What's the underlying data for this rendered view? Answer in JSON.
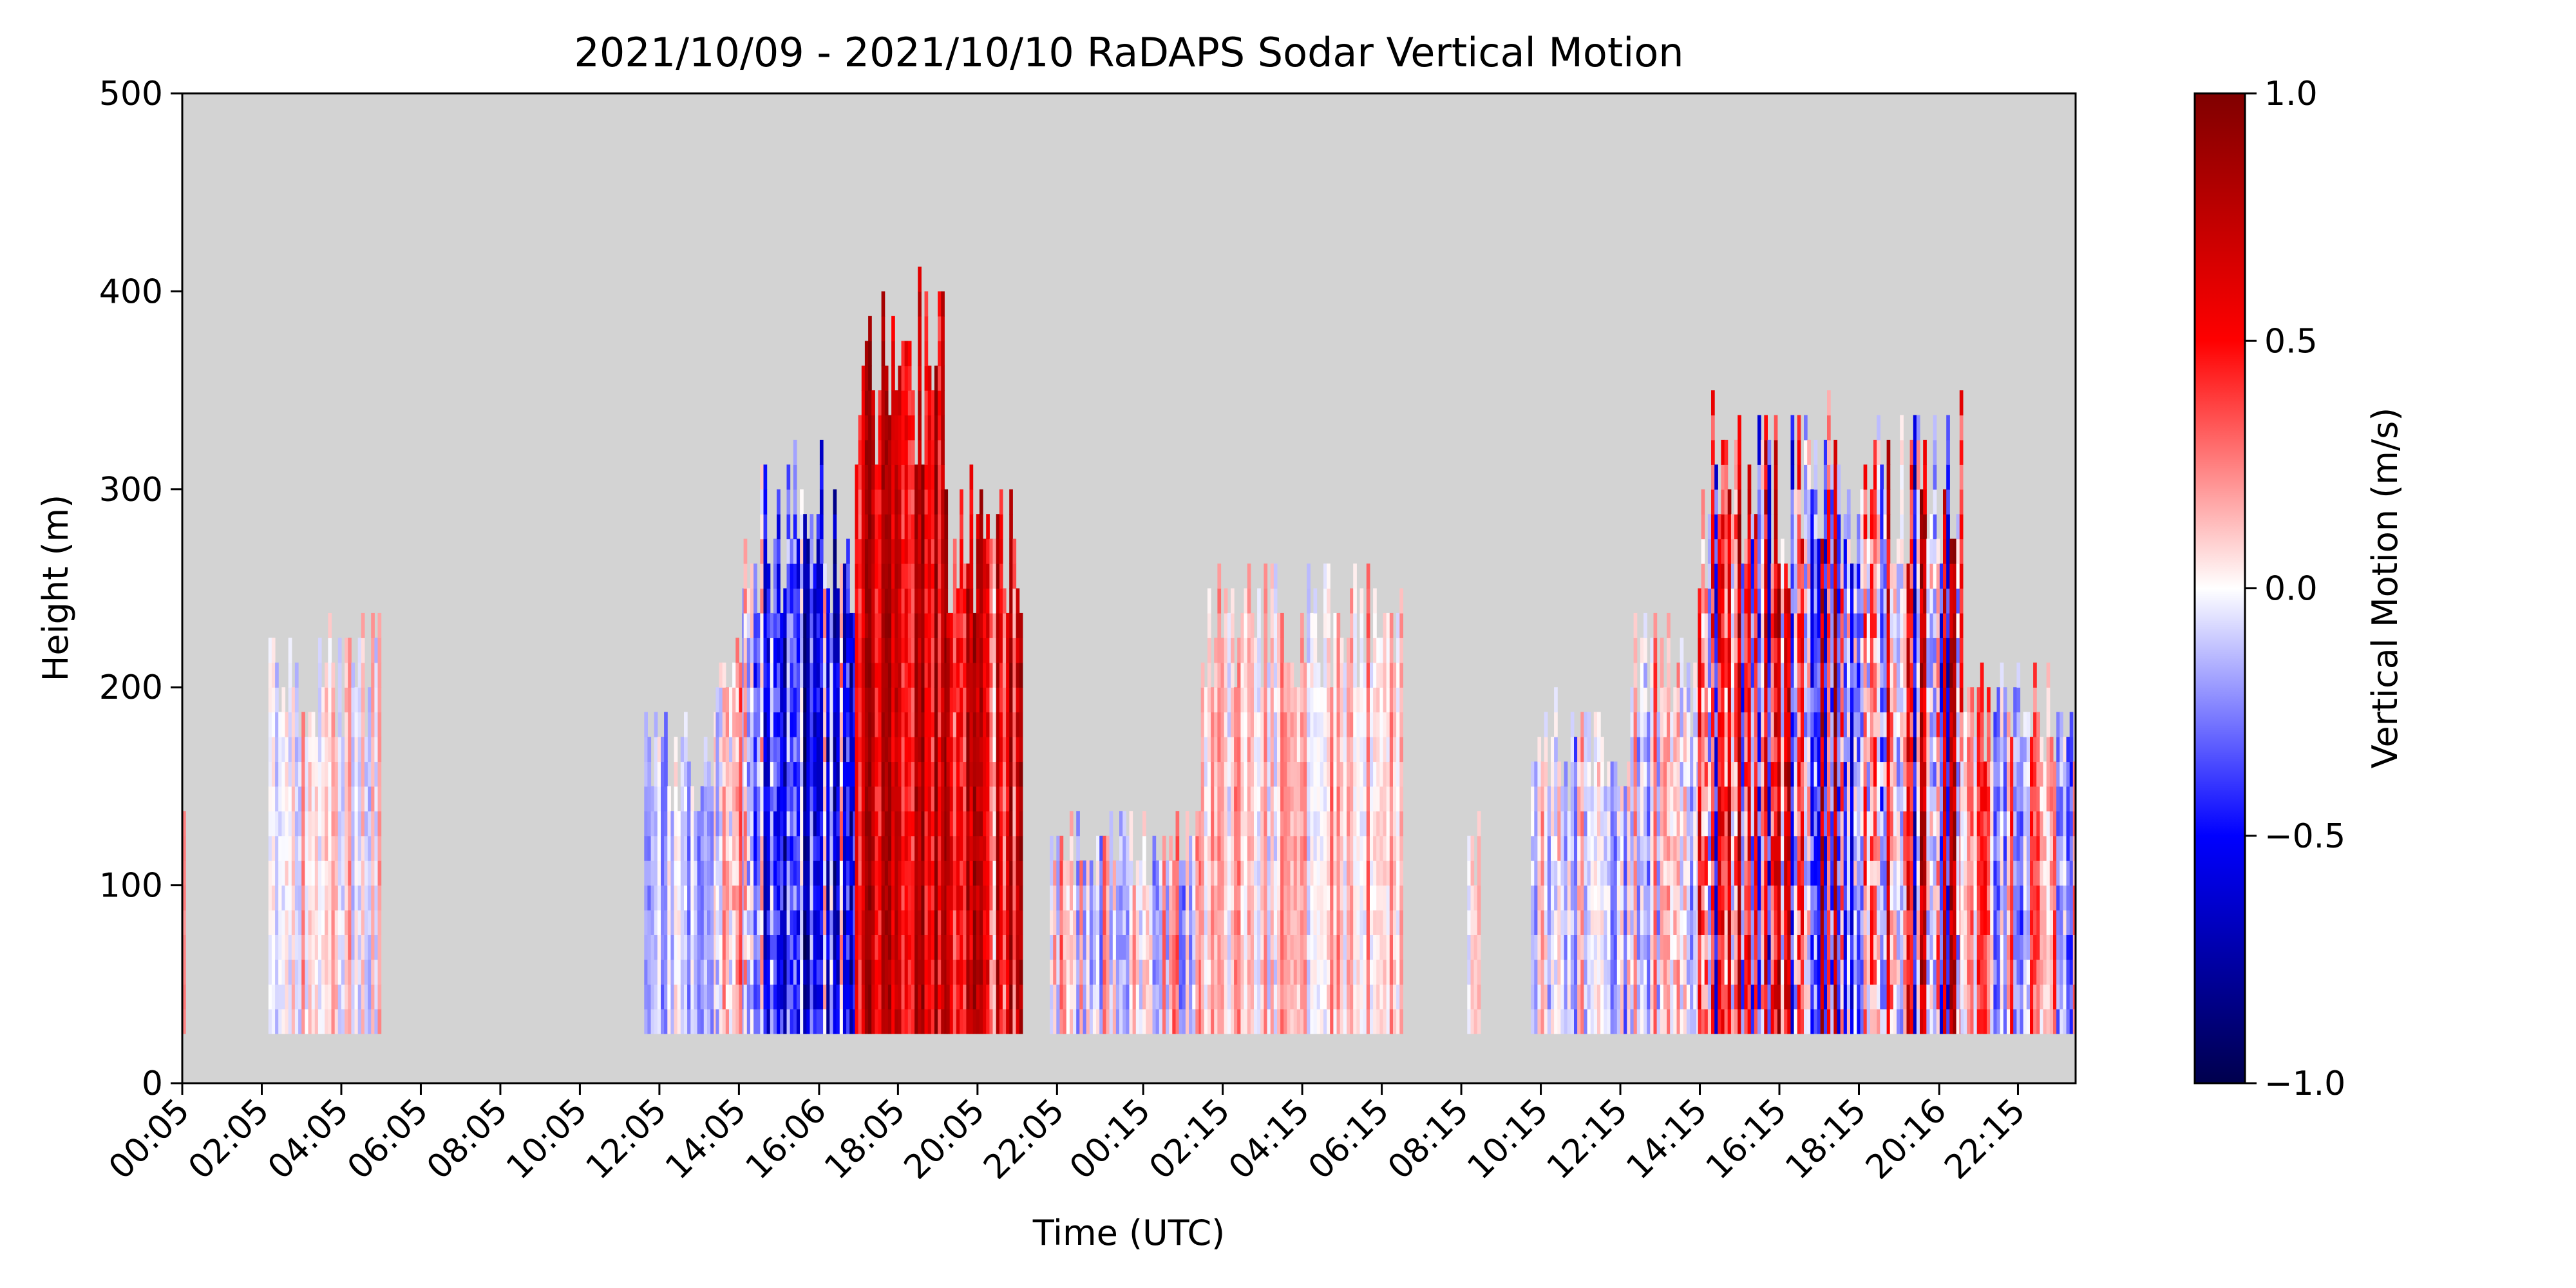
{
  "chart_data": {
    "type": "heatmap",
    "title": "2021/10/09 - 2021/10/10 RaDAPS Sodar Vertical Motion",
    "xlabel": "Time (UTC)",
    "ylabel": "Height (m)",
    "colorbar_label": "Vertical Motion (m/s)",
    "colormap": "seismic",
    "background_color": "#d3d3d3",
    "grid": false,
    "xlim_hours": [
      0.083,
      47.7
    ],
    "ylim": [
      0,
      500
    ],
    "y_ticks": [
      0,
      100,
      200,
      300,
      400,
      500
    ],
    "x_tick_hours": [
      0.083,
      2.083,
      4.083,
      6.083,
      8.083,
      10.083,
      12.083,
      14.083,
      16.1,
      18.083,
      20.083,
      22.083,
      24.25,
      26.25,
      28.25,
      30.25,
      32.25,
      34.25,
      36.25,
      38.25,
      40.25,
      42.25,
      44.27,
      46.25
    ],
    "x_tick_labels": [
      "00:05",
      "02:05",
      "04:05",
      "06:05",
      "08:05",
      "10:05",
      "12:05",
      "14:05",
      "16:06",
      "18:05",
      "20:05",
      "22:05",
      "00:15",
      "02:15",
      "04:15",
      "06:15",
      "08:15",
      "10:15",
      "12:15",
      "14:15",
      "16:15",
      "18:15",
      "20:16",
      "22:15"
    ],
    "colorbar_ticks": [
      -1.0,
      -0.5,
      0.0,
      0.5,
      1.0
    ],
    "colorbar_tick_labels": [
      "−1.0",
      "−0.5",
      "0.0",
      "0.5",
      "1.0"
    ],
    "vmin": -1.0,
    "vmax": 1.0,
    "min_height": 25,
    "time_resolution_hours": 0.0833,
    "segments": [
      {
        "start": 0.083,
        "end": 0.15,
        "top": 160,
        "mean": 0.2,
        "amp": 0.1
      },
      {
        "start": 2.25,
        "end": 5.0,
        "top": 220,
        "mean": 0.05,
        "amp": 0.2
      },
      {
        "start": 11.7,
        "end": 13.5,
        "top": 175,
        "mean": -0.1,
        "amp": 0.2
      },
      {
        "start": 13.5,
        "end": 14.2,
        "top": 235,
        "mean": 0.05,
        "amp": 0.4
      },
      {
        "start": 14.2,
        "end": 17.0,
        "top": 300,
        "mean": -0.3,
        "amp": 0.55
      },
      {
        "start": 17.0,
        "end": 19.3,
        "top": 390,
        "mean": 0.65,
        "amp": 0.3
      },
      {
        "start": 19.3,
        "end": 21.2,
        "top": 300,
        "mean": 0.5,
        "amp": 0.4
      },
      {
        "start": 21.9,
        "end": 25.7,
        "top": 130,
        "mean": 0.0,
        "amp": 0.3
      },
      {
        "start": 25.7,
        "end": 30.7,
        "top": 250,
        "mean": 0.1,
        "amp": 0.2
      },
      {
        "start": 32.4,
        "end": 32.7,
        "top": 130,
        "mean": 0.0,
        "amp": 0.15
      },
      {
        "start": 34.0,
        "end": 36.5,
        "top": 180,
        "mean": -0.05,
        "amp": 0.3
      },
      {
        "start": 36.5,
        "end": 38.2,
        "top": 230,
        "mean": 0.05,
        "amp": 0.35
      },
      {
        "start": 38.2,
        "end": 44.8,
        "top": 330,
        "mean": 0.1,
        "amp": 0.7
      },
      {
        "start": 44.8,
        "end": 47.7,
        "top": 200,
        "mean": 0.05,
        "amp": 0.4
      }
    ]
  }
}
